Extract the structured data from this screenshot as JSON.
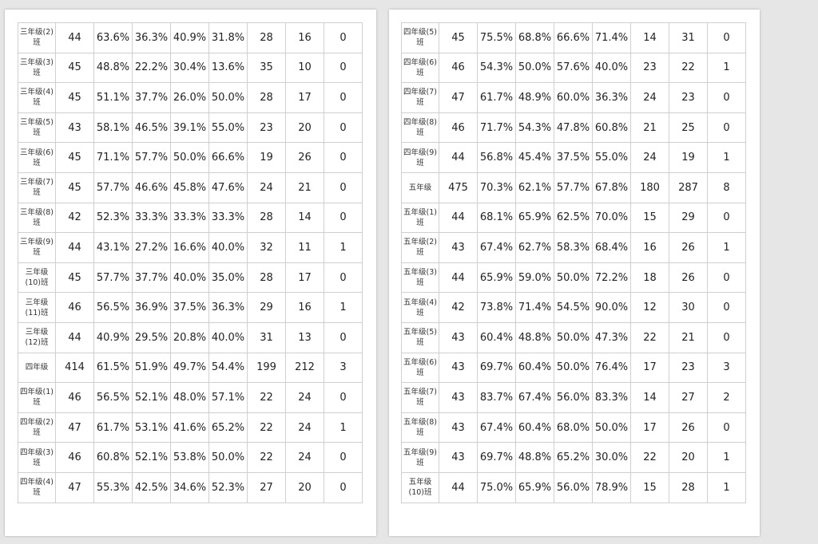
{
  "left_table": {
    "rows": [
      [
        "三年级(2)班",
        "44",
        "63.6%",
        "36.3%",
        "40.9%",
        "31.8%",
        "28",
        "16",
        "0"
      ],
      [
        "三年级(3)班",
        "45",
        "48.8%",
        "22.2%",
        "30.4%",
        "13.6%",
        "35",
        "10",
        "0"
      ],
      [
        "三年级(4)班",
        "45",
        "51.1%",
        "37.7%",
        "26.0%",
        "50.0%",
        "28",
        "17",
        "0"
      ],
      [
        "三年级(5)班",
        "43",
        "58.1%",
        "46.5%",
        "39.1%",
        "55.0%",
        "23",
        "20",
        "0"
      ],
      [
        "三年级(6)班",
        "45",
        "71.1%",
        "57.7%",
        "50.0%",
        "66.6%",
        "19",
        "26",
        "0"
      ],
      [
        "三年级(7)班",
        "45",
        "57.7%",
        "46.6%",
        "45.8%",
        "47.6%",
        "24",
        "21",
        "0"
      ],
      [
        "三年级(8)班",
        "42",
        "52.3%",
        "33.3%",
        "33.3%",
        "33.3%",
        "28",
        "14",
        "0"
      ],
      [
        "三年级(9)班",
        "44",
        "43.1%",
        "27.2%",
        "16.6%",
        "40.0%",
        "32",
        "11",
        "1"
      ],
      [
        "三年级(10)班",
        "45",
        "57.7%",
        "37.7%",
        "40.0%",
        "35.0%",
        "28",
        "17",
        "0"
      ],
      [
        "三年级(11)班",
        "46",
        "56.5%",
        "36.9%",
        "37.5%",
        "36.3%",
        "29",
        "16",
        "1"
      ],
      [
        "三年级(12)班",
        "44",
        "40.9%",
        "29.5%",
        "20.8%",
        "40.0%",
        "31",
        "13",
        "0"
      ],
      [
        "四年级",
        "414",
        "61.5%",
        "51.9%",
        "49.7%",
        "54.4%",
        "199",
        "212",
        "3"
      ],
      [
        "四年级(1)班",
        "46",
        "56.5%",
        "52.1%",
        "48.0%",
        "57.1%",
        "22",
        "24",
        "0"
      ],
      [
        "四年级(2)班",
        "47",
        "61.7%",
        "53.1%",
        "41.6%",
        "65.2%",
        "22",
        "24",
        "1"
      ],
      [
        "四年级(3)班",
        "46",
        "60.8%",
        "52.1%",
        "53.8%",
        "50.0%",
        "22",
        "24",
        "0"
      ],
      [
        "四年级(4)班",
        "47",
        "55.3%",
        "42.5%",
        "34.6%",
        "52.3%",
        "27",
        "20",
        "0"
      ]
    ]
  },
  "right_table": {
    "rows": [
      [
        "四年级(5)班",
        "45",
        "75.5%",
        "68.8%",
        "66.6%",
        "71.4%",
        "14",
        "31",
        "0"
      ],
      [
        "四年级(6)班",
        "46",
        "54.3%",
        "50.0%",
        "57.6%",
        "40.0%",
        "23",
        "22",
        "1"
      ],
      [
        "四年级(7)班",
        "47",
        "61.7%",
        "48.9%",
        "60.0%",
        "36.3%",
        "24",
        "23",
        "0"
      ],
      [
        "四年级(8)班",
        "46",
        "71.7%",
        "54.3%",
        "47.8%",
        "60.8%",
        "21",
        "25",
        "0"
      ],
      [
        "四年级(9)班",
        "44",
        "56.8%",
        "45.4%",
        "37.5%",
        "55.0%",
        "24",
        "19",
        "1"
      ],
      [
        "五年级",
        "475",
        "70.3%",
        "62.1%",
        "57.7%",
        "67.8%",
        "180",
        "287",
        "8"
      ],
      [
        "五年级(1)班",
        "44",
        "68.1%",
        "65.9%",
        "62.5%",
        "70.0%",
        "15",
        "29",
        "0"
      ],
      [
        "五年级(2)班",
        "43",
        "67.4%",
        "62.7%",
        "58.3%",
        "68.4%",
        "16",
        "26",
        "1"
      ],
      [
        "五年级(3)班",
        "44",
        "65.9%",
        "59.0%",
        "50.0%",
        "72.2%",
        "18",
        "26",
        "0"
      ],
      [
        "五年级(4)班",
        "42",
        "73.8%",
        "71.4%",
        "54.5%",
        "90.0%",
        "12",
        "30",
        "0"
      ],
      [
        "五年级(5)班",
        "43",
        "60.4%",
        "48.8%",
        "50.0%",
        "47.3%",
        "22",
        "21",
        "0"
      ],
      [
        "五年级(6)班",
        "43",
        "69.7%",
        "60.4%",
        "50.0%",
        "76.4%",
        "17",
        "23",
        "3"
      ],
      [
        "五年级(7)班",
        "43",
        "83.7%",
        "67.4%",
        "56.0%",
        "83.3%",
        "14",
        "27",
        "2"
      ],
      [
        "五年级(8)班",
        "43",
        "67.4%",
        "60.4%",
        "68.0%",
        "50.0%",
        "17",
        "26",
        "0"
      ],
      [
        "五年级(9)班",
        "43",
        "69.7%",
        "48.8%",
        "65.2%",
        "30.0%",
        "22",
        "20",
        "1"
      ],
      [
        "五年级(10)班",
        "44",
        "75.0%",
        "65.9%",
        "56.0%",
        "78.9%",
        "15",
        "28",
        "1"
      ]
    ]
  }
}
